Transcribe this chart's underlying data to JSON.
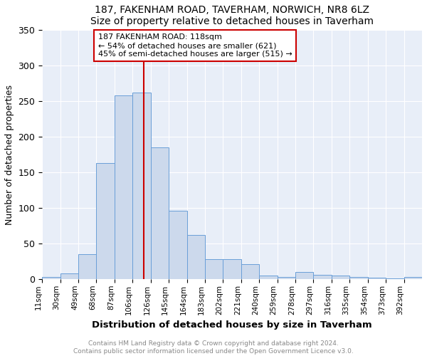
{
  "title": "187, FAKENHAM ROAD, TAVERHAM, NORWICH, NR8 6LZ",
  "subtitle": "Size of property relative to detached houses in Taverham",
  "xlabel": "Distribution of detached houses by size in Taverham",
  "ylabel": "Number of detached properties",
  "bar_color": "#ccd9ec",
  "bar_edge_color": "#6a9fd8",
  "bar_edge_width": 0.7,
  "vline_x": 118,
  "vline_color": "#cc0000",
  "annotation_line1": "187 FAKENHAM ROAD: 118sqm",
  "annotation_line2": "← 54% of detached houses are smaller (621)",
  "annotation_line3": "45% of semi-detached houses are larger (515) →",
  "annotation_box_color": "white",
  "annotation_box_edge": "#cc0000",
  "background_color": "#e8eef8",
  "grid_color": "white",
  "footer_text": "Contains HM Land Registry data © Crown copyright and database right 2024.\nContains public sector information licensed under the Open Government Licence v3.0.",
  "bin_edges": [
    11,
    30,
    49,
    68,
    87,
    106,
    125,
    144,
    163,
    182,
    201,
    220,
    239,
    258,
    277,
    296,
    315,
    334,
    353,
    372,
    391,
    410
  ],
  "counts": [
    3,
    8,
    35,
    163,
    258,
    262,
    185,
    96,
    62,
    28,
    28,
    21,
    5,
    3,
    10,
    6,
    5,
    3,
    2,
    1,
    3
  ],
  "tick_labels": [
    "11sqm",
    "30sqm",
    "49sqm",
    "68sqm",
    "87sqm",
    "106sqm",
    "126sqm",
    "145sqm",
    "164sqm",
    "183sqm",
    "202sqm",
    "221sqm",
    "240sqm",
    "259sqm",
    "278sqm",
    "297sqm",
    "316sqm",
    "335sqm",
    "354sqm",
    "373sqm",
    "392sqm"
  ],
  "ylim": [
    0,
    350
  ],
  "yticks": [
    0,
    50,
    100,
    150,
    200,
    250,
    300,
    350
  ]
}
